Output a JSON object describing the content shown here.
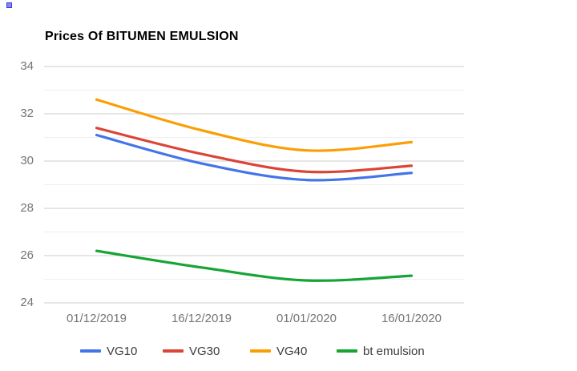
{
  "chart_data": {
    "type": "line",
    "title": "Prices Of BITUMEN EMULSION",
    "categories": [
      "01/12/2019",
      "16/12/2019",
      "01/01/2020",
      "16/01/2020"
    ],
    "series": [
      {
        "name": "VG10",
        "color": "#4374e8",
        "values": [
          31.1,
          29.9,
          29.2,
          29.5
        ]
      },
      {
        "name": "VG30",
        "color": "#db4437",
        "values": [
          31.4,
          30.3,
          29.55,
          29.8
        ]
      },
      {
        "name": "VG40",
        "color": "#fb9e04",
        "values": [
          32.6,
          31.3,
          30.45,
          30.8
        ]
      },
      {
        "name": "bt emulsion",
        "color": "#16a434",
        "values": [
          26.2,
          25.5,
          24.95,
          25.15
        ]
      }
    ],
    "yticks": [
      34,
      32,
      30,
      28,
      26,
      24
    ],
    "ylim": [
      24,
      34
    ],
    "xlabel": "",
    "ylabel": "",
    "grid": true,
    "minor_gridlines": true,
    "curve": "smooth",
    "legend_position": "bottom",
    "colors": {
      "major_gridline": "#cccccc",
      "minor_gridline": "#efefef",
      "axis_label": "#757575",
      "legend_text": "#3c3c3c",
      "title_text": "#000000"
    }
  }
}
